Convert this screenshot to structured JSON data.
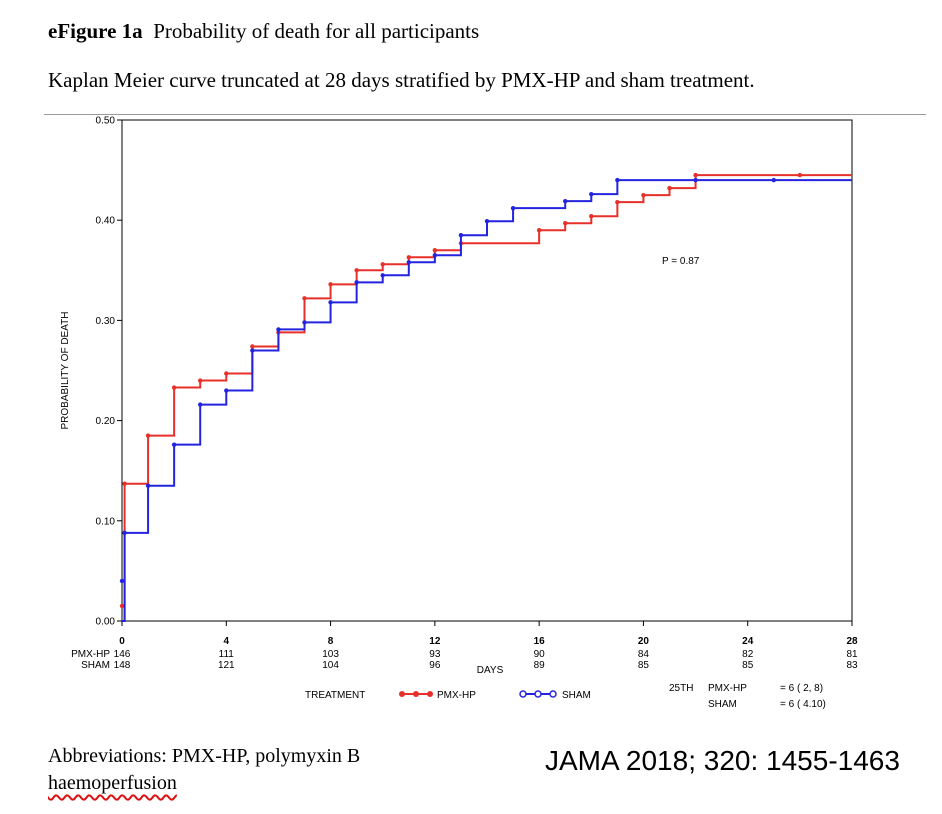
{
  "header": {
    "figure_label": "eFigure 1a",
    "title": "Probability of death for all participants",
    "subtitle": "Kaplan Meier curve truncated at 28 days stratified by PMX-HP and sham treatment."
  },
  "footer": {
    "abbreviations_line1": "Abbreviations: PMX-HP, polymyxin B",
    "abbreviations_line2": "haemoperfusion",
    "citation": "JAMA 2018; 320: 1455-1463"
  },
  "chart_data": {
    "type": "line",
    "step": true,
    "xlabel": "DAYS",
    "ylabel": "PROBABILITY OF DEATH",
    "xlim": [
      0,
      28
    ],
    "ylim": [
      0,
      0.5
    ],
    "x_ticks": [
      0,
      4,
      8,
      12,
      16,
      20,
      24,
      28
    ],
    "y_ticks": [
      0.0,
      0.1,
      0.2,
      0.3,
      0.4,
      0.5
    ],
    "y_tick_labels": [
      "0.00",
      "0.10",
      "0.20",
      "0.30",
      "0.40",
      "0.50"
    ],
    "grid": false,
    "annotation": "P = 0.87",
    "legend": {
      "title": "TREATMENT",
      "placement": "below",
      "entries": [
        "PMX-HP",
        "SHAM"
      ]
    },
    "series": [
      {
        "name": "PMX-HP",
        "color": "#e8302a",
        "steps": [
          [
            0,
            0.0
          ],
          [
            0.1,
            0.137
          ],
          [
            1,
            0.185
          ],
          [
            2,
            0.233
          ],
          [
            3,
            0.24
          ],
          [
            4,
            0.247
          ],
          [
            5,
            0.274
          ],
          [
            6,
            0.288
          ],
          [
            7,
            0.322
          ],
          [
            8,
            0.336
          ],
          [
            9,
            0.35
          ],
          [
            10,
            0.356
          ],
          [
            11,
            0.363
          ],
          [
            12,
            0.37
          ],
          [
            13,
            0.377
          ],
          [
            16,
            0.39
          ],
          [
            17,
            0.397
          ],
          [
            18,
            0.404
          ],
          [
            19,
            0.418
          ],
          [
            20,
            0.425
          ],
          [
            21,
            0.432
          ],
          [
            22,
            0.445
          ],
          [
            28,
            0.445
          ]
        ],
        "censored": [
          [
            0,
            0.015
          ],
          [
            26,
            0.445
          ]
        ]
      },
      {
        "name": "SHAM",
        "color": "#2424e0",
        "steps": [
          [
            0,
            0.0
          ],
          [
            0.1,
            0.088
          ],
          [
            1,
            0.135
          ],
          [
            2,
            0.176
          ],
          [
            3,
            0.216
          ],
          [
            4,
            0.23
          ],
          [
            5,
            0.27
          ],
          [
            6,
            0.291
          ],
          [
            7,
            0.298
          ],
          [
            8,
            0.318
          ],
          [
            9,
            0.338
          ],
          [
            10,
            0.345
          ],
          [
            11,
            0.358
          ],
          [
            12,
            0.365
          ],
          [
            13,
            0.385
          ],
          [
            14,
            0.399
          ],
          [
            15,
            0.412
          ],
          [
            17,
            0.419
          ],
          [
            18,
            0.426
          ],
          [
            19,
            0.44
          ],
          [
            28,
            0.44
          ]
        ],
        "censored": [
          [
            0,
            0.04
          ],
          [
            22,
            0.44
          ],
          [
            25,
            0.44
          ]
        ]
      }
    ],
    "number_at_risk": {
      "days": [
        0,
        4,
        8,
        12,
        16,
        20,
        24,
        28
      ],
      "rows": [
        {
          "label": "PMX-HP",
          "values": [
            146,
            111,
            103,
            93,
            90,
            84,
            82,
            81
          ]
        },
        {
          "label": "SHAM",
          "values": [
            148,
            121,
            104,
            96,
            89,
            85,
            85,
            83
          ]
        }
      ]
    },
    "quartiles": {
      "heading": "25TH",
      "rows": [
        {
          "label": "PMX-HP",
          "value": "= 6 ( 2, 8)"
        },
        {
          "label": "SHAM",
          "value": "= 6 ( 4.10)"
        }
      ]
    }
  }
}
